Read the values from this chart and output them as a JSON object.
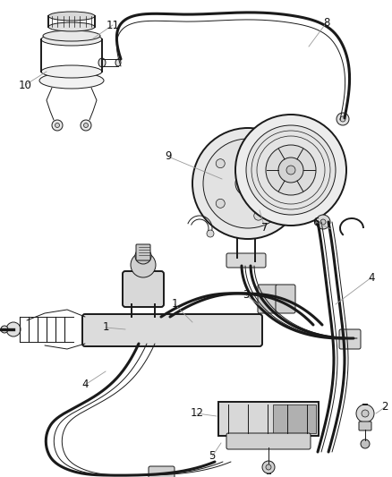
{
  "bg_color": "#ffffff",
  "line_color": "#1a1a1a",
  "label_color": "#111111",
  "leader_color": "#999999",
  "fig_width": 4.39,
  "fig_height": 5.33,
  "dpi": 100,
  "lw_hose": 2.2,
  "lw_part": 1.4,
  "lw_thin": 0.7,
  "lw_leader": 0.6,
  "font_size": 8.5
}
